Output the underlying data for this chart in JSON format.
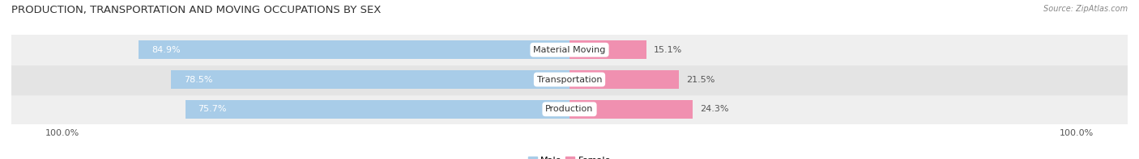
{
  "title": "PRODUCTION, TRANSPORTATION AND MOVING OCCUPATIONS BY SEX",
  "source": "Source: ZipAtlas.com",
  "categories": [
    "Production",
    "Transportation",
    "Material Moving"
  ],
  "male_values": [
    75.7,
    78.5,
    84.9
  ],
  "female_values": [
    24.3,
    21.5,
    15.1
  ],
  "male_color": "#a8cce8",
  "female_color": "#f090b0",
  "row_colors": [
    "#efefef",
    "#e4e4e4",
    "#efefef"
  ],
  "background_color": "#ffffff",
  "title_fontsize": 9.5,
  "source_fontsize": 7,
  "label_fontsize": 8,
  "pct_fontsize": 8,
  "tick_fontsize": 8,
  "legend_fontsize": 8,
  "xlim_left": -110,
  "xlim_right": 110,
  "bar_height": 0.62
}
